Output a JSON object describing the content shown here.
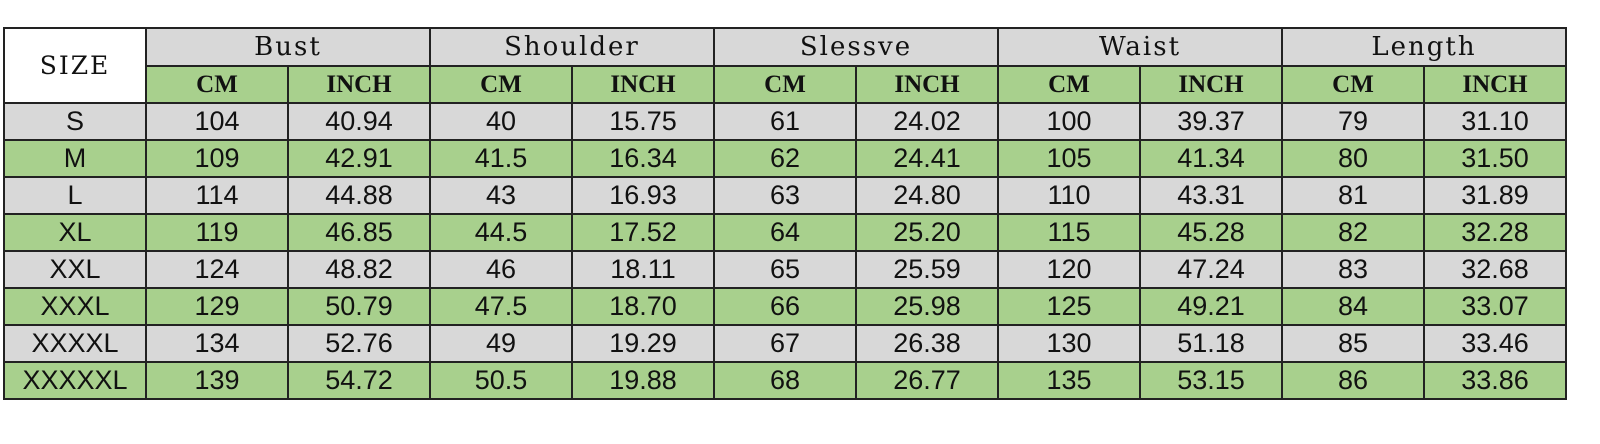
{
  "colors": {
    "gray": "#d8d8d8",
    "green": "#a8d08d"
  },
  "size_header": "SIZE",
  "groups": [
    "Bust",
    "Shoulder",
    "Slessve",
    "Waist",
    "Length"
  ],
  "units": [
    "CM",
    "INCH"
  ],
  "rows": [
    [
      "S",
      "104",
      "40.94",
      "40",
      "15.75",
      "61",
      "24.02",
      "100",
      "39.37",
      "79",
      "31.10"
    ],
    [
      "M",
      "109",
      "42.91",
      "41.5",
      "16.34",
      "62",
      "24.41",
      "105",
      "41.34",
      "80",
      "31.50"
    ],
    [
      "L",
      "114",
      "44.88",
      "43",
      "16.93",
      "63",
      "24.80",
      "110",
      "43.31",
      "81",
      "31.89"
    ],
    [
      "XL",
      "119",
      "46.85",
      "44.5",
      "17.52",
      "64",
      "25.20",
      "115",
      "45.28",
      "82",
      "32.28"
    ],
    [
      "XXL",
      "124",
      "48.82",
      "46",
      "18.11",
      "65",
      "25.59",
      "120",
      "47.24",
      "83",
      "32.68"
    ],
    [
      "XXXL",
      "129",
      "50.79",
      "47.5",
      "18.70",
      "66",
      "25.98",
      "125",
      "49.21",
      "84",
      "33.07"
    ],
    [
      "XXXXL",
      "134",
      "52.76",
      "49",
      "19.29",
      "67",
      "26.38",
      "130",
      "51.18",
      "85",
      "33.46"
    ],
    [
      "XXXXXL",
      "139",
      "54.72",
      "50.5",
      "19.88",
      "68",
      "26.77",
      "135",
      "53.15",
      "86",
      "33.86"
    ]
  ]
}
